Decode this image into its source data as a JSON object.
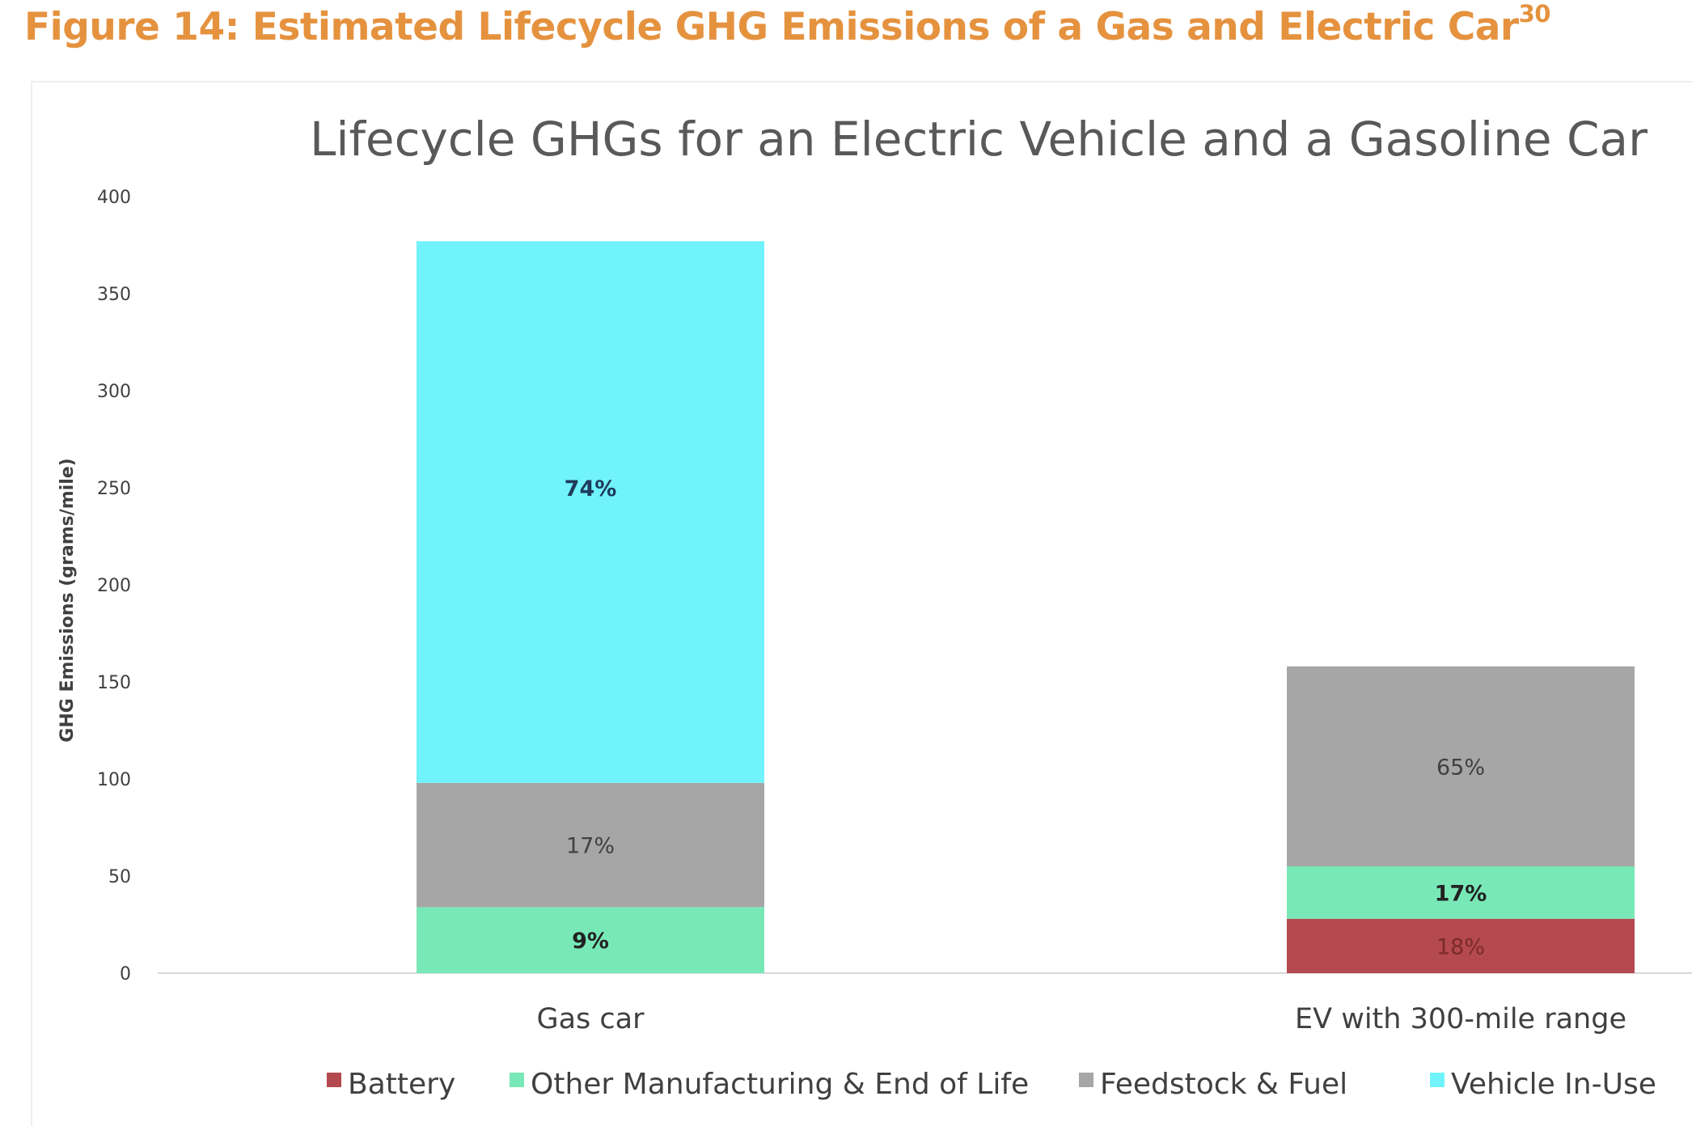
{
  "figure": {
    "title": "Figure 14: Estimated Lifecycle GHG Emissions of a Gas and Electric Car",
    "superscript": "30"
  },
  "chart_data": {
    "type": "bar",
    "stacked": true,
    "title": "Lifecycle GHGs for an Electric Vehicle and a Gasoline Car",
    "ylabel": "GHG Emissions (grams/mile)",
    "xlabel": "",
    "ylim": [
      0,
      400
    ],
    "yticks": [
      0,
      50,
      100,
      150,
      200,
      250,
      300,
      350,
      400
    ],
    "grid": false,
    "legend_position": "bottom",
    "categories": [
      "Gas car",
      "EV with 300-mile range"
    ],
    "series": [
      {
        "name": "Battery",
        "color": "#B4494F",
        "label_color": "#7a2a2a",
        "values": [
          0,
          28
        ],
        "labels": [
          "",
          "18%"
        ]
      },
      {
        "name": "Other Manufacturing & End of Life",
        "color": "#78E8B7",
        "label_color": "#222222",
        "values": [
          34,
          27
        ],
        "labels": [
          "9%",
          "17%"
        ]
      },
      {
        "name": "Feedstock & Fuel",
        "color": "#A6A6A6",
        "label_color": "#404040",
        "values": [
          64,
          103
        ],
        "labels": [
          "17%",
          "65%"
        ]
      },
      {
        "name": "Vehicle In-Use",
        "color": "#70F3FA",
        "label_color": "#1f3a5a",
        "values": [
          279,
          0
        ],
        "labels": [
          "74%",
          ""
        ]
      }
    ]
  }
}
